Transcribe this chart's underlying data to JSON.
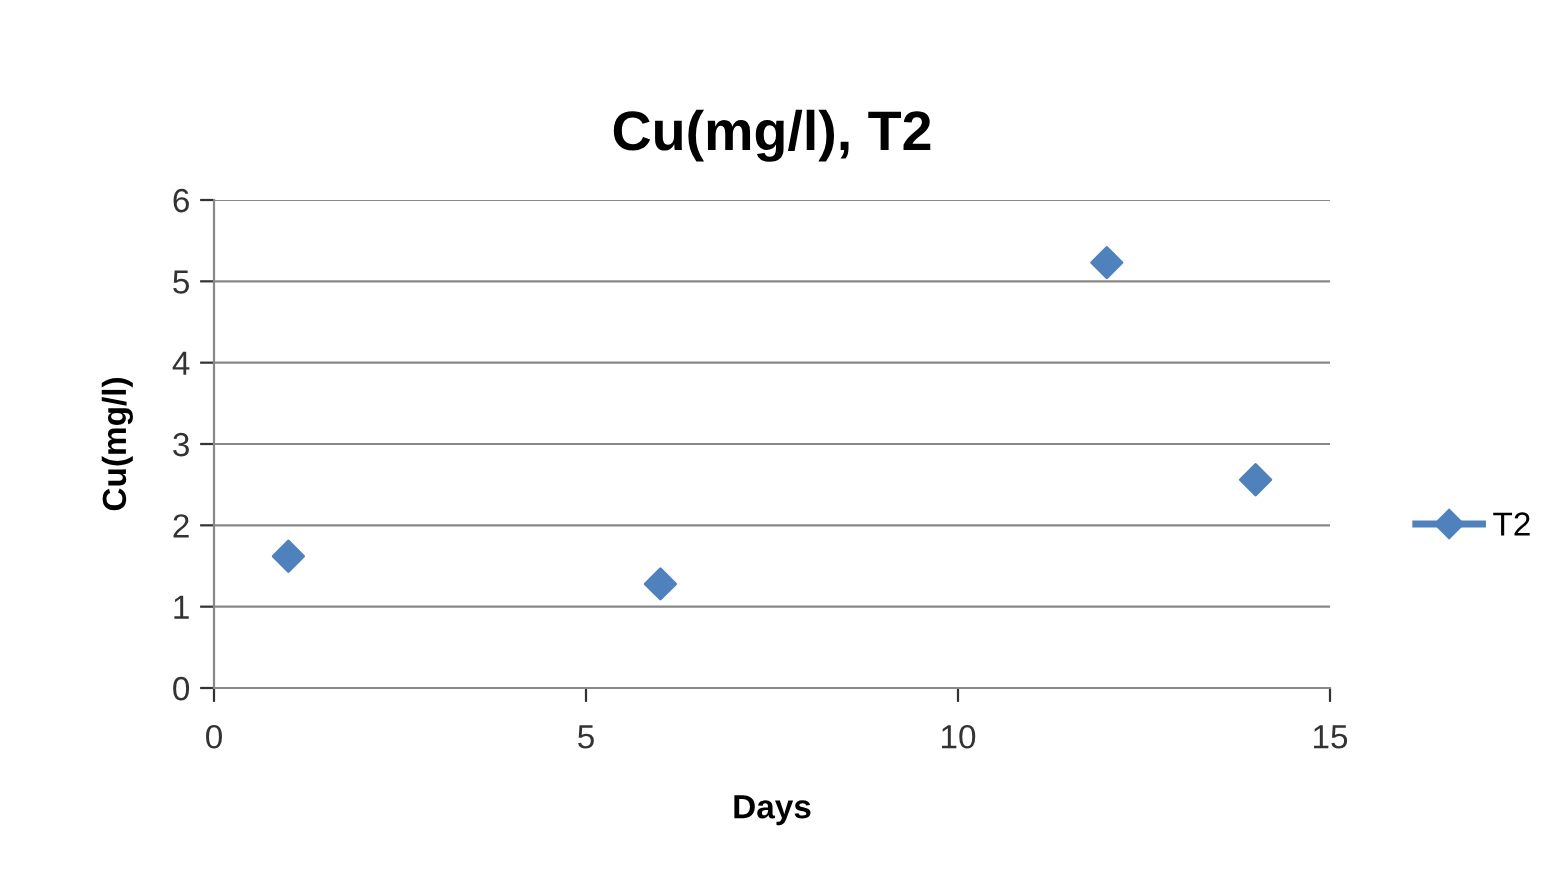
{
  "chart_data": {
    "type": "scatter",
    "title": "Cu(mg/l), T2",
    "xlabel": "Days",
    "ylabel": "Cu(mg/l)",
    "series": [
      {
        "name": "T2",
        "color": "#4f81bd",
        "x": [
          1,
          6,
          12,
          14
        ],
        "values": [
          1.62,
          1.28,
          5.23,
          2.56
        ]
      }
    ],
    "xlim": [
      0,
      15
    ],
    "xticks": [
      0,
      5,
      10,
      15
    ],
    "ylim": [
      0,
      6
    ],
    "yticks": [
      0,
      1,
      2,
      3,
      4,
      5,
      6
    ],
    "grid": "y",
    "legend": "right",
    "marker": "diamond"
  }
}
